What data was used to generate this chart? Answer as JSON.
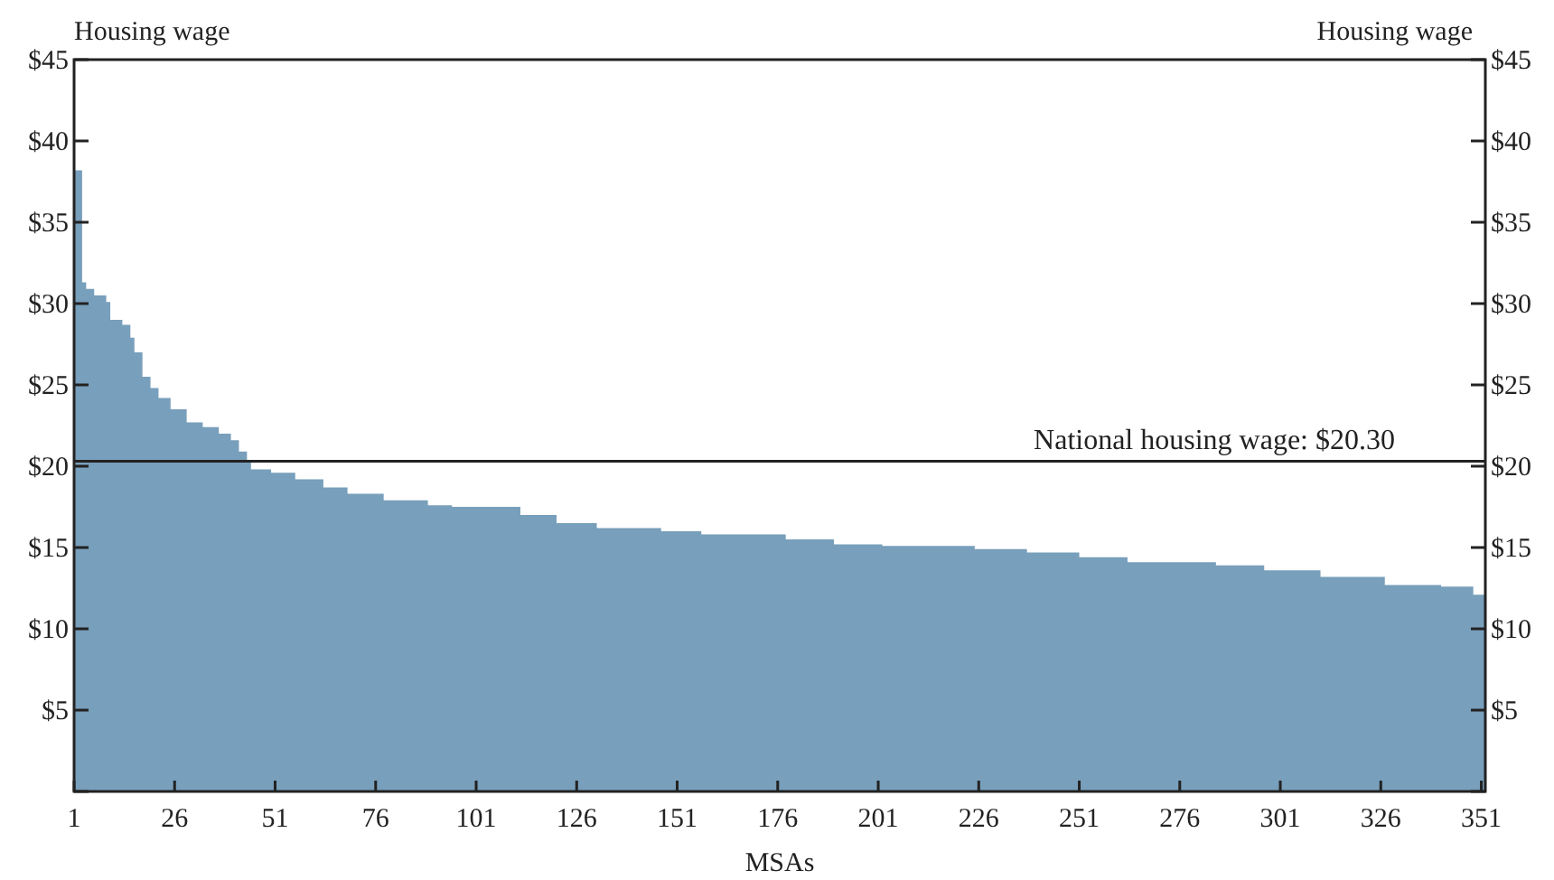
{
  "chart_data": {
    "type": "area",
    "xlabel": "MSAs",
    "ylabel": "Housing wage",
    "y2label": "Housing wage",
    "x": [
      1,
      2,
      3,
      4,
      6,
      9,
      10,
      13,
      15,
      16,
      18,
      20,
      22,
      25,
      29,
      33,
      37,
      40,
      42,
      44,
      45,
      50,
      56,
      63,
      69,
      78,
      89,
      95,
      112,
      121,
      131,
      147,
      157,
      178,
      190,
      202,
      225,
      238,
      251,
      263,
      285,
      297,
      311,
      327,
      341,
      349,
      352
    ],
    "series": [
      {
        "color": "#789fbb",
        "values": [
          38.2,
          38.2,
          31.3,
          30.9,
          30.5,
          30.1,
          29.0,
          28.7,
          27.9,
          27.0,
          25.5,
          24.8,
          24.2,
          23.5,
          22.7,
          22.4,
          22.0,
          21.6,
          20.9,
          20.3,
          19.8,
          19.6,
          19.2,
          18.7,
          18.3,
          17.9,
          17.6,
          17.5,
          17.0,
          16.5,
          16.2,
          16.0,
          15.8,
          15.5,
          15.2,
          15.1,
          14.9,
          14.7,
          14.4,
          14.1,
          13.9,
          13.6,
          13.2,
          12.7,
          12.6,
          12.1,
          11.8
        ]
      }
    ],
    "xlim": [
      1,
      352
    ],
    "xticks": [
      1,
      26,
      51,
      76,
      101,
      126,
      151,
      176,
      201,
      226,
      251,
      276,
      301,
      326,
      351
    ],
    "ylim": [
      0,
      45
    ],
    "yticks": [
      {
        "value": 0,
        "label": null
      },
      {
        "value": 5,
        "label": "$5"
      },
      {
        "value": 10,
        "label": "$10"
      },
      {
        "value": 15,
        "label": "$15"
      },
      {
        "value": 20,
        "label": "$20"
      },
      {
        "value": 25,
        "label": "$25"
      },
      {
        "value": 30,
        "label": "$30"
      },
      {
        "value": 35,
        "label": "$35"
      },
      {
        "value": 40,
        "label": "$40"
      },
      {
        "value": 45,
        "label": "$45"
      }
    ],
    "y2lim": [
      0,
      45
    ],
    "y2ticks": [
      {
        "value": 0,
        "label": null
      },
      {
        "value": 5,
        "label": "$5"
      },
      {
        "value": 10,
        "label": "$10"
      },
      {
        "value": 15,
        "label": "$15"
      },
      {
        "value": 20,
        "label": "$20"
      },
      {
        "value": 25,
        "label": "$25"
      },
      {
        "value": 30,
        "label": "$30"
      },
      {
        "value": 35,
        "label": "$35"
      },
      {
        "value": 40,
        "label": "$40"
      },
      {
        "value": 45,
        "label": "$45"
      }
    ],
    "ref_lines": [
      {
        "axis": "y",
        "value": 20.3,
        "label": "National housing wage: $20.30",
        "color": "#222222"
      }
    ],
    "grid": false
  }
}
